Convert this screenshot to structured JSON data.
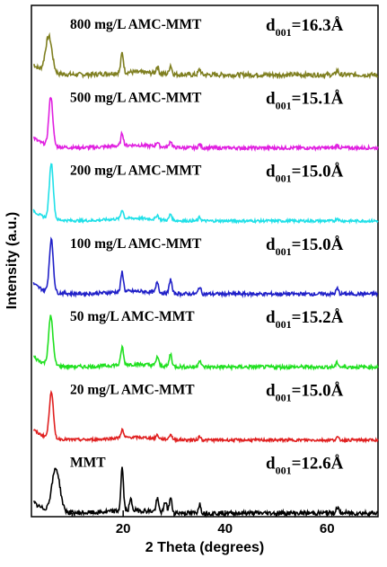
{
  "chart_data": {
    "type": "line",
    "xlabel": "2 Theta (degrees)",
    "ylabel": "Intensity (a.u.)",
    "xlim": [
      2,
      70
    ],
    "xticks": [
      20,
      40,
      60
    ],
    "x_tick_labels": [
      "20",
      "40",
      "60"
    ],
    "series": [
      {
        "name": "800 mg/L AMC-MMT",
        "d_prefix": "d",
        "d_sub": "001",
        "d_value": "=16.3Å",
        "color": "#7f7f20",
        "main_peak": 5.4,
        "main_width": 0.9,
        "main_height": 40,
        "secondary": [
          [
            19.8,
            22
          ],
          [
            26.7,
            8
          ],
          [
            29.3,
            10
          ],
          [
            35.0,
            6
          ],
          [
            62.0,
            5
          ]
        ],
        "noise": 2.5
      },
      {
        "name": "500 mg/L AMC-MMT",
        "d_prefix": "d",
        "d_sub": "001",
        "d_value": "=15.1Å",
        "color": "#e020e0",
        "main_peak": 5.8,
        "main_width": 0.55,
        "main_height": 55,
        "secondary": [
          [
            19.8,
            14
          ],
          [
            26.7,
            5
          ],
          [
            29.3,
            7
          ],
          [
            35.0,
            4
          ],
          [
            62.0,
            3
          ]
        ],
        "noise": 1.8
      },
      {
        "name": "200 mg/L AMC-MMT",
        "d_prefix": "d",
        "d_sub": "001",
        "d_value": "=15.0Å",
        "color": "#20e0e8",
        "main_peak": 5.9,
        "main_width": 0.55,
        "main_height": 62,
        "secondary": [
          [
            19.8,
            10
          ],
          [
            26.7,
            5
          ],
          [
            29.3,
            7
          ],
          [
            35.0,
            4
          ],
          [
            62.0,
            3
          ]
        ],
        "noise": 1.5
      },
      {
        "name": "100 mg/L AMC-MMT",
        "d_prefix": "d",
        "d_sub": "001",
        "d_value": "=15.0Å",
        "color": "#2020c8",
        "main_peak": 5.9,
        "main_width": 0.55,
        "main_height": 58,
        "secondary": [
          [
            19.8,
            22
          ],
          [
            26.7,
            12
          ],
          [
            29.3,
            16
          ],
          [
            35.0,
            8
          ],
          [
            62.0,
            6
          ]
        ],
        "noise": 2.0
      },
      {
        "name": "50 mg/L AMC-MMT",
        "d_prefix": "d",
        "d_sub": "001",
        "d_value": "=15.2Å",
        "color": "#20e020",
        "main_peak": 5.8,
        "main_width": 0.6,
        "main_height": 54,
        "secondary": [
          [
            19.8,
            20
          ],
          [
            26.7,
            10
          ],
          [
            29.3,
            14
          ],
          [
            35.0,
            8
          ],
          [
            62.0,
            5
          ]
        ],
        "noise": 2.0
      },
      {
        "name": "20 mg/L AMC-MMT",
        "d_prefix": "d",
        "d_sub": "001",
        "d_value": "=15.0Å",
        "color": "#e02020",
        "main_peak": 5.9,
        "main_width": 0.55,
        "main_height": 52,
        "secondary": [
          [
            19.8,
            9
          ],
          [
            26.7,
            4
          ],
          [
            29.3,
            6
          ],
          [
            35.0,
            4
          ],
          [
            62.0,
            3
          ]
        ],
        "noise": 1.5
      },
      {
        "name": "MMT",
        "d_prefix": "d",
        "d_sub": "001",
        "d_value": "=12.6Å",
        "color": "#000000",
        "main_peak": 6.8,
        "main_width": 1.1,
        "main_height": 48,
        "secondary": [
          [
            19.8,
            48
          ],
          [
            21.5,
            12
          ],
          [
            26.7,
            14
          ],
          [
            28.3,
            12
          ],
          [
            29.3,
            16
          ],
          [
            35.0,
            10
          ],
          [
            62.0,
            7
          ]
        ],
        "noise": 2.5
      }
    ]
  }
}
